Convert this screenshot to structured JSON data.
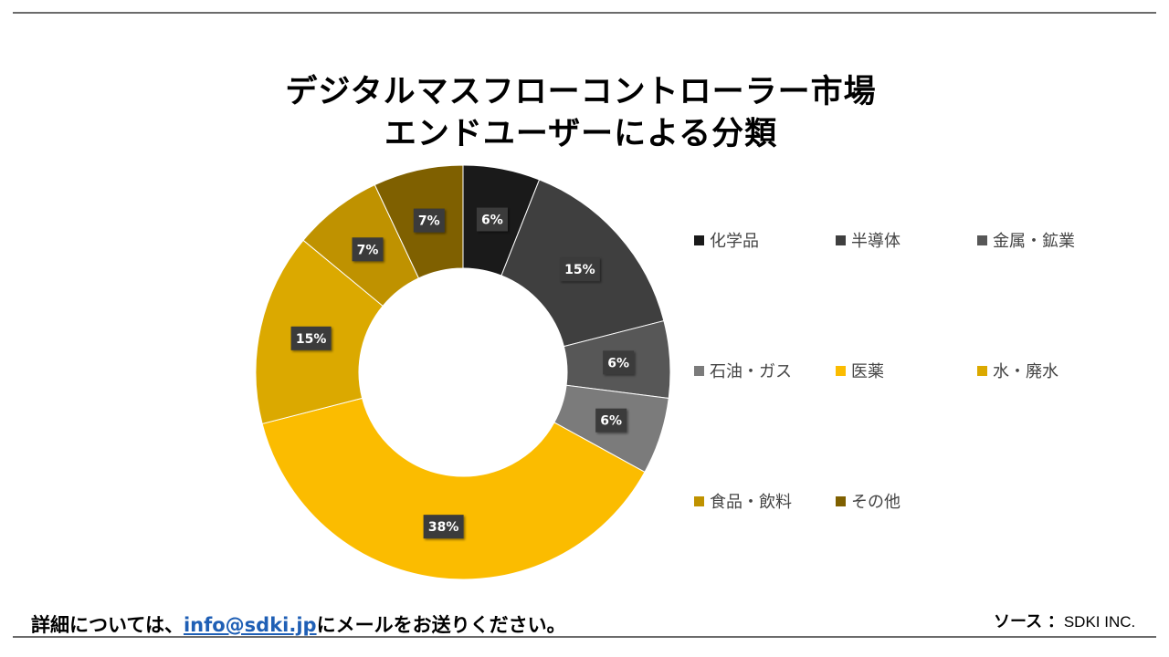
{
  "title": {
    "line1": "デジタルマスフローコントローラー市場",
    "line2": "エンドユーザーによる分類"
  },
  "chart_data": {
    "type": "pie",
    "donut": true,
    "title": "デジタルマスフローコントローラー市場 エンドユーザーによる分類",
    "legend_position": "right",
    "slices": [
      {
        "name": "化学品",
        "value": 6,
        "label": "6%",
        "color": "#1a1a1a"
      },
      {
        "name": "半導体",
        "value": 15,
        "label": "15%",
        "color": "#3f3f3f"
      },
      {
        "name": "金属・鉱業",
        "value": 6,
        "label": "6%",
        "color": "#575757"
      },
      {
        "name": "石油・ガス",
        "value": 6,
        "label": "6%",
        "color": "#7b7b7b"
      },
      {
        "name": "医薬",
        "value": 38,
        "label": "38%",
        "color": "#fbbc00"
      },
      {
        "name": "水・廃水",
        "value": 15,
        "label": "15%",
        "color": "#dba900"
      },
      {
        "name": "食品・飲料",
        "value": 7,
        "label": "7%",
        "color": "#bf9200"
      },
      {
        "name": "その他",
        "value": 7,
        "label": "7%",
        "color": "#7f6000"
      }
    ]
  },
  "footer": {
    "contact_prefix": "詳細については、",
    "contact_link": "info@sdki.jp",
    "contact_suffix": "にメールをお送りください。",
    "source_label": "ソース",
    "source_sep": "：",
    "source_name": "SDKI INC."
  }
}
